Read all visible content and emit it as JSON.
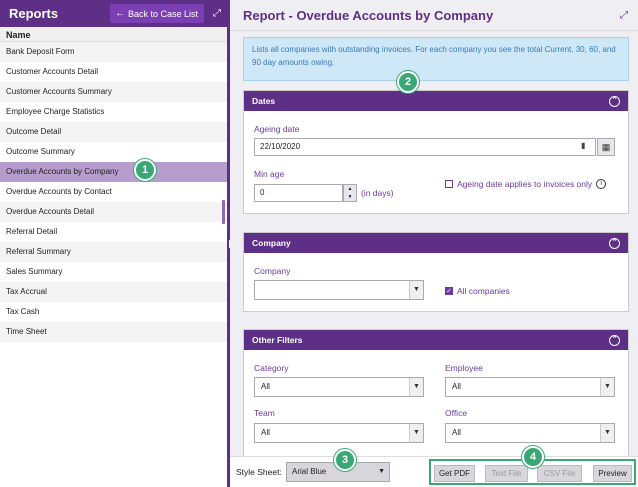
{
  "left": {
    "title": "Reports",
    "back_label": "Back to Case List",
    "column_header": "Name",
    "items": [
      "Bank Deposit Form",
      "Customer Accounts Detail",
      "Customer Accounts Summary",
      "Employee Charge Statistics",
      "Outcome Detail",
      "Outcome Summary",
      "Overdue Accounts by Company",
      "Overdue Accounts by Contact",
      "Overdue Accounts Detail",
      "Referral Detail",
      "Referral Summary",
      "Sales Summary",
      "Tax Accrual",
      "Tax Cash",
      "Time Sheet"
    ],
    "selected_index": 6
  },
  "right": {
    "title": "Report - Overdue Accounts by Company",
    "info": "Lists all companies with outstanding invoices. For each company you see the total Current, 30, 60, and 90 day amounts owing.",
    "dates": {
      "heading": "Dates",
      "ageing_label": "Ageing date",
      "ageing_value": "22/10/2020",
      "min_age_label": "Min age",
      "min_age_value": "0",
      "in_days": "(in days)",
      "applies_label": "Ageing date applies to invoices only"
    },
    "company": {
      "heading": "Company",
      "company_label": "Company",
      "company_value": "",
      "all_companies_label": "All companies",
      "all_companies_checked": true
    },
    "filters": {
      "heading": "Other Filters",
      "category_label": "Category",
      "category_value": "All",
      "employee_label": "Employee",
      "employee_value": "All",
      "team_label": "Team",
      "team_value": "All",
      "office_label": "Office",
      "office_value": "All"
    }
  },
  "bottom": {
    "style_sheet_label": "Style Sheet:",
    "style_sheet_value": "Arial Blue",
    "get_pdf": "Get PDF",
    "text_file": "Text File",
    "csv_file": "CSV File",
    "preview": "Preview"
  },
  "callouts": [
    "1",
    "2",
    "3",
    "4"
  ],
  "colors": {
    "brand_purple": "#5d2f86",
    "selected_row": "#b59dce",
    "callout_green": "#3aa876",
    "info_bg": "#cfe8f7"
  }
}
